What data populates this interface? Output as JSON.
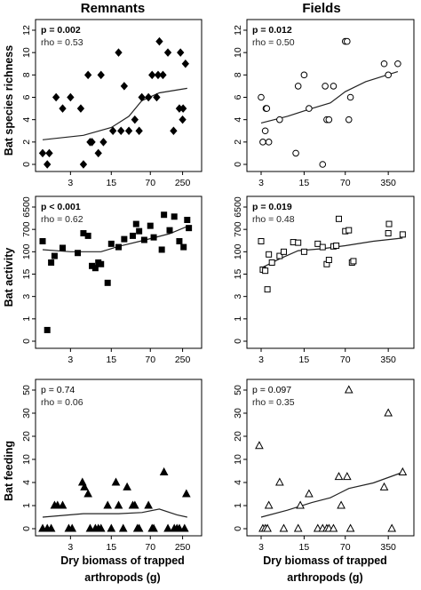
{
  "columns": [
    "Remnants",
    "Fields"
  ],
  "rows": [
    "Bat species richness",
    "Bat activity",
    "Bat feeding"
  ],
  "xlabel_line1": "Dry biomass of trapped",
  "xlabel_line2": "arthropods (g)",
  "chart_data": [
    {
      "type": "scatter",
      "column": "Remnants",
      "row": "Bat species richness",
      "marker": "diamond-filled",
      "xticks": [
        "3",
        "15",
        "70",
        "250"
      ],
      "yticks": [
        "0",
        "2",
        "4",
        "6",
        "8",
        "10",
        "12"
      ],
      "stats": {
        "p": "p = 0.002",
        "p_bold": true,
        "rho": "rho = 0.53"
      },
      "points": [
        [
          1,
          1
        ],
        [
          1.2,
          0
        ],
        [
          1.3,
          1
        ],
        [
          1.7,
          6
        ],
        [
          2.2,
          5
        ],
        [
          3,
          6
        ],
        [
          4.5,
          5
        ],
        [
          6,
          8
        ],
        [
          5,
          0
        ],
        [
          6.5,
          2
        ],
        [
          7,
          2
        ],
        [
          9,
          1
        ],
        [
          11,
          2
        ],
        [
          10,
          8
        ],
        [
          16,
          3
        ],
        [
          20,
          10
        ],
        [
          22,
          3
        ],
        [
          25,
          7
        ],
        [
          30,
          3
        ],
        [
          38,
          4
        ],
        [
          45,
          3
        ],
        [
          50,
          6
        ],
        [
          65,
          6
        ],
        [
          75,
          8
        ],
        [
          90,
          6
        ],
        [
          95,
          8
        ],
        [
          100,
          11
        ],
        [
          115,
          8
        ],
        [
          140,
          10
        ],
        [
          175,
          3
        ],
        [
          220,
          5
        ],
        [
          230,
          10
        ],
        [
          250,
          4
        ],
        [
          255,
          5
        ],
        [
          280,
          9
        ]
      ],
      "trend": [
        [
          1,
          2.2
        ],
        [
          5,
          2.6
        ],
        [
          15,
          3.3
        ],
        [
          30,
          4.3
        ],
        [
          50,
          5.7
        ],
        [
          100,
          6.4
        ],
        [
          300,
          6.8
        ]
      ]
    },
    {
      "type": "scatter",
      "column": "Fields",
      "row": "Bat species richness",
      "marker": "circle-open",
      "xticks": [
        "3",
        "15",
        "70",
        "350"
      ],
      "yticks": [
        "0",
        "2",
        "4",
        "6",
        "8",
        "10",
        "12"
      ],
      "stats": {
        "p": "p = 0.012",
        "p_bold": true,
        "rho": "rho = 0.50"
      },
      "points": [
        [
          3,
          6
        ],
        [
          3.2,
          2
        ],
        [
          3.5,
          3
        ],
        [
          3.6,
          5
        ],
        [
          3.7,
          5
        ],
        [
          4,
          2
        ],
        [
          6,
          4
        ],
        [
          11,
          1
        ],
        [
          12,
          7
        ],
        [
          15,
          8
        ],
        [
          18,
          5
        ],
        [
          30,
          0
        ],
        [
          33,
          7
        ],
        [
          35,
          4
        ],
        [
          38,
          4
        ],
        [
          45,
          7
        ],
        [
          70,
          11
        ],
        [
          75,
          11
        ],
        [
          80,
          4
        ],
        [
          85,
          6
        ],
        [
          300,
          9
        ],
        [
          350,
          8
        ],
        [
          500,
          9
        ]
      ],
      "trend": [
        [
          3,
          3.7
        ],
        [
          8,
          4.3
        ],
        [
          20,
          5.0
        ],
        [
          40,
          5.5
        ],
        [
          70,
          6.5
        ],
        [
          150,
          7.4
        ],
        [
          500,
          8.3
        ]
      ]
    },
    {
      "type": "scatter",
      "column": "Remnants",
      "row": "Bat activity",
      "marker": "square-filled",
      "xticks": [
        "3",
        "15",
        "70",
        "250"
      ],
      "yticks": [
        "0",
        "1",
        "3",
        "15",
        "100",
        "700",
        "6500"
      ],
      "stats": {
        "p": "p < 0.001",
        "p_bold": true,
        "rho": "rho = 0.62"
      },
      "points": [
        [
          1,
          250
        ],
        [
          1.2,
          0.5
        ],
        [
          1.4,
          40
        ],
        [
          1.6,
          70
        ],
        [
          2.2,
          140
        ],
        [
          4,
          90
        ],
        [
          5,
          500
        ],
        [
          6,
          400
        ],
        [
          7,
          30
        ],
        [
          8,
          25
        ],
        [
          9,
          40
        ],
        [
          10,
          35
        ],
        [
          13,
          8
        ],
        [
          15,
          200
        ],
        [
          20,
          150
        ],
        [
          25,
          300
        ],
        [
          35,
          400
        ],
        [
          40,
          1200
        ],
        [
          45,
          600
        ],
        [
          55,
          280
        ],
        [
          70,
          1000
        ],
        [
          80,
          350
        ],
        [
          110,
          120
        ],
        [
          120,
          3000
        ],
        [
          150,
          650
        ],
        [
          180,
          2500
        ],
        [
          220,
          250
        ],
        [
          260,
          150
        ],
        [
          300,
          1800
        ],
        [
          320,
          800
        ]
      ],
      "trend": [
        [
          1,
          120
        ],
        [
          3,
          100
        ],
        [
          10,
          100
        ],
        [
          20,
          160
        ],
        [
          50,
          260
        ],
        [
          150,
          480
        ],
        [
          320,
          1000
        ]
      ]
    },
    {
      "type": "scatter",
      "column": "Fields",
      "row": "Bat activity",
      "marker": "square-open",
      "xticks": [
        "3",
        "15",
        "70",
        "350"
      ],
      "yticks": [
        "0",
        "1",
        "3",
        "15",
        "100",
        "700",
        "6500"
      ],
      "stats": {
        "p": "p = 0.019",
        "p_bold": true,
        "rho": "rho = 0.48"
      },
      "points": [
        [
          3,
          250
        ],
        [
          3.2,
          22
        ],
        [
          3.5,
          20
        ],
        [
          3.8,
          5
        ],
        [
          4,
          80
        ],
        [
          4.5,
          40
        ],
        [
          6,
          70
        ],
        [
          7,
          100
        ],
        [
          10,
          230
        ],
        [
          12,
          220
        ],
        [
          15,
          100
        ],
        [
          25,
          200
        ],
        [
          30,
          150
        ],
        [
          35,
          35
        ],
        [
          38,
          50
        ],
        [
          45,
          160
        ],
        [
          50,
          170
        ],
        [
          55,
          2000
        ],
        [
          70,
          600
        ],
        [
          80,
          650
        ],
        [
          90,
          40
        ],
        [
          95,
          45
        ],
        [
          350,
          500
        ],
        [
          360,
          1200
        ],
        [
          600,
          450
        ]
      ],
      "trend": [
        [
          3,
          25
        ],
        [
          6,
          55
        ],
        [
          12,
          110
        ],
        [
          30,
          130
        ],
        [
          70,
          170
        ],
        [
          200,
          250
        ],
        [
          600,
          330
        ]
      ]
    },
    {
      "type": "scatter",
      "column": "Remnants",
      "row": "Bat feeding",
      "marker": "triangle-filled",
      "xticks": [
        "3",
        "15",
        "70",
        "250"
      ],
      "yticks": [
        "0",
        "1",
        "4",
        "10",
        "20",
        "30",
        "50"
      ],
      "stats": {
        "p": "p = 0.74",
        "p_bold": false,
        "rho": "rho = 0.06"
      },
      "points": [
        [
          1,
          0
        ],
        [
          1.2,
          0
        ],
        [
          1.4,
          0
        ],
        [
          1.6,
          1
        ],
        [
          1.8,
          1
        ],
        [
          2.2,
          1
        ],
        [
          2.8,
          0
        ],
        [
          3.2,
          0
        ],
        [
          4.8,
          4
        ],
        [
          5.2,
          3
        ],
        [
          6,
          2
        ],
        [
          6.5,
          0
        ],
        [
          8,
          0
        ],
        [
          9,
          0
        ],
        [
          10,
          0
        ],
        [
          13,
          1
        ],
        [
          15,
          0
        ],
        [
          18,
          4
        ],
        [
          20,
          1
        ],
        [
          24,
          0
        ],
        [
          28,
          3
        ],
        [
          35,
          1
        ],
        [
          38,
          1
        ],
        [
          42,
          0
        ],
        [
          45,
          0
        ],
        [
          65,
          1
        ],
        [
          75,
          0
        ],
        [
          80,
          0
        ],
        [
          120,
          6
        ],
        [
          140,
          0
        ],
        [
          180,
          0
        ],
        [
          200,
          0
        ],
        [
          220,
          0
        ],
        [
          270,
          0
        ],
        [
          290,
          2
        ]
      ],
      "trend": [
        [
          1,
          0.5
        ],
        [
          5,
          0.65
        ],
        [
          20,
          0.65
        ],
        [
          50,
          0.7
        ],
        [
          100,
          0.85
        ],
        [
          200,
          0.6
        ],
        [
          300,
          0.5
        ]
      ]
    },
    {
      "type": "scatter",
      "column": "Fields",
      "row": "Bat feeding",
      "marker": "triangle-open",
      "xticks": [
        "3",
        "15",
        "70",
        "350"
      ],
      "yticks": [
        "0",
        "1",
        "4",
        "10",
        "20",
        "30",
        "50"
      ],
      "stats": {
        "p": "p = 0.097",
        "p_bold": false,
        "rho": "rho = 0.35"
      },
      "points": [
        [
          2.8,
          15
        ],
        [
          3.2,
          0
        ],
        [
          3.5,
          0
        ],
        [
          3.8,
          0
        ],
        [
          4,
          1
        ],
        [
          6,
          4
        ],
        [
          7,
          0
        ],
        [
          12,
          0
        ],
        [
          13,
          1
        ],
        [
          18,
          2
        ],
        [
          25,
          0
        ],
        [
          30,
          0
        ],
        [
          35,
          0
        ],
        [
          38,
          0
        ],
        [
          45,
          0
        ],
        [
          55,
          5
        ],
        [
          60,
          1
        ],
        [
          75,
          5
        ],
        [
          80,
          50
        ],
        [
          85,
          0
        ],
        [
          300,
          3
        ],
        [
          350,
          30
        ],
        [
          400,
          0
        ],
        [
          600,
          6
        ]
      ],
      "trend": [
        [
          3,
          0.5
        ],
        [
          8,
          0.8
        ],
        [
          20,
          1.2
        ],
        [
          40,
          1.6
        ],
        [
          80,
          2.8
        ],
        [
          200,
          3.9
        ],
        [
          600,
          6
        ]
      ]
    }
  ]
}
